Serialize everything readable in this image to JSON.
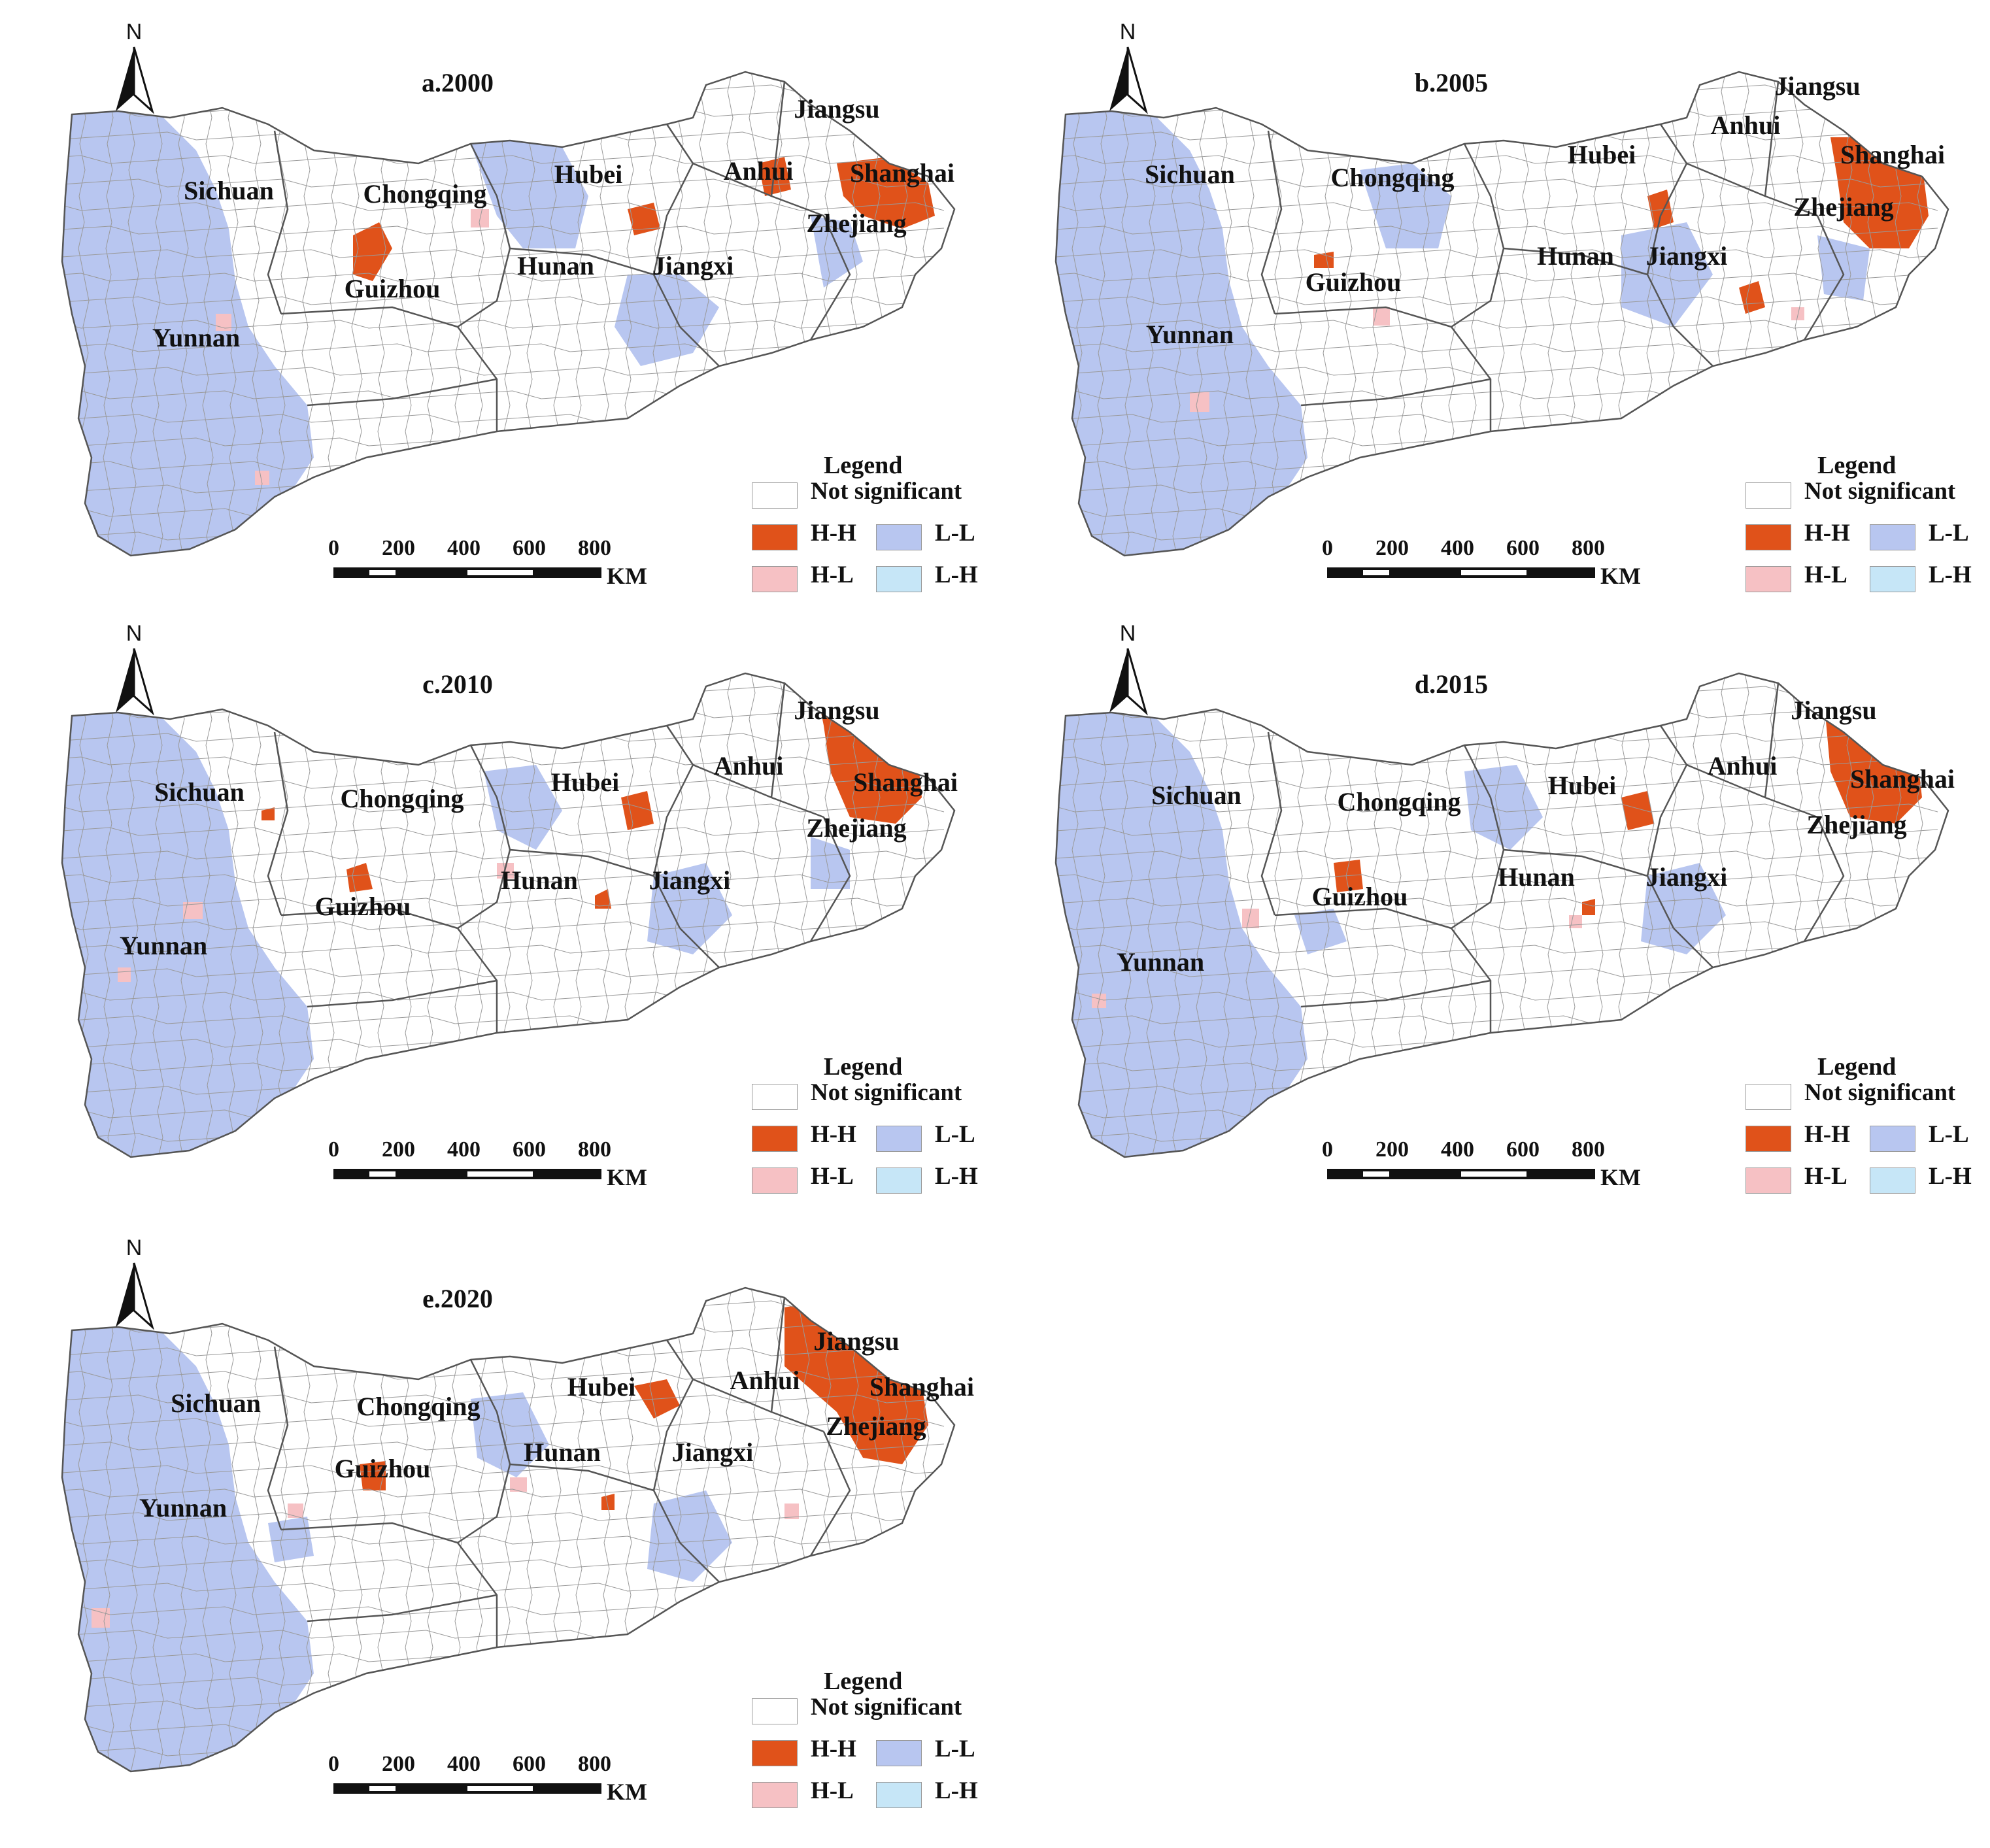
{
  "legend": {
    "title": "Legend",
    "items": [
      {
        "key": "ns",
        "label": "Not significant",
        "color": "#ffffff"
      },
      {
        "key": "hh",
        "label": "H-H",
        "color": "#e0521a"
      },
      {
        "key": "ll",
        "label": "L-L",
        "color": "#b8c6f0"
      },
      {
        "key": "hl",
        "label": "H-L",
        "color": "#f6c1c4"
      },
      {
        "key": "lh",
        "label": "L-H",
        "color": "#c6e6f7"
      }
    ]
  },
  "scale": {
    "ticks": [
      "0",
      "200",
      "400",
      "600",
      "800"
    ],
    "unit": "KM"
  },
  "north_label": "N",
  "colors": {
    "hh": "#e0521a",
    "ll": "#b8c6f0",
    "hl": "#f6c1c4",
    "ns": "#ffffff",
    "boundary": "#7a7a7a"
  },
  "provinces": [
    "Sichuan",
    "Chongqing",
    "Guizhou",
    "Yunnan",
    "Hubei",
    "Hunan",
    "Jiangxi",
    "Anhui",
    "Jiangsu",
    "Shanghai",
    "Zhejiang"
  ],
  "panels": [
    {
      "id": "a",
      "title": "a.2000"
    },
    {
      "id": "b",
      "title": "b.2005"
    },
    {
      "id": "c",
      "title": "c.2010"
    },
    {
      "id": "d",
      "title": "d.2015"
    },
    {
      "id": "e",
      "title": "e.2020"
    }
  ]
}
